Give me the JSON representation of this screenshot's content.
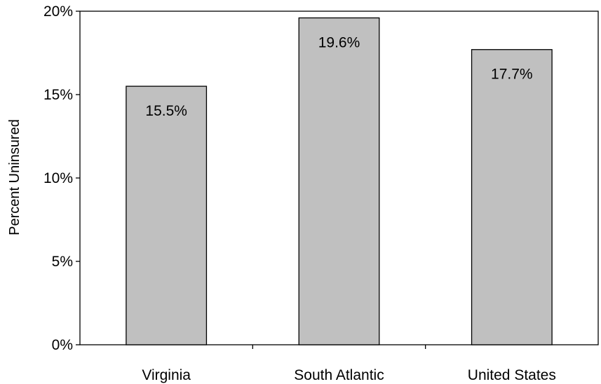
{
  "chart_data": {
    "type": "bar",
    "title": "",
    "xlabel": "",
    "ylabel": "Percent Uninsured",
    "categories": [
      "Virginia",
      "South Atlantic",
      "United States"
    ],
    "values": [
      15.5,
      19.6,
      17.7
    ],
    "data_labels": [
      "15.5%",
      "19.6%",
      "17.7%"
    ],
    "ylim": [
      0,
      20
    ],
    "yticks": [
      0,
      5,
      10,
      15,
      20
    ],
    "ytick_labels": [
      "0%",
      "5%",
      "10%",
      "15%",
      "20%"
    ],
    "grid": false,
    "legend": "none",
    "bar_color": "#c0c0c0",
    "bar_edge_color": "#000000"
  }
}
